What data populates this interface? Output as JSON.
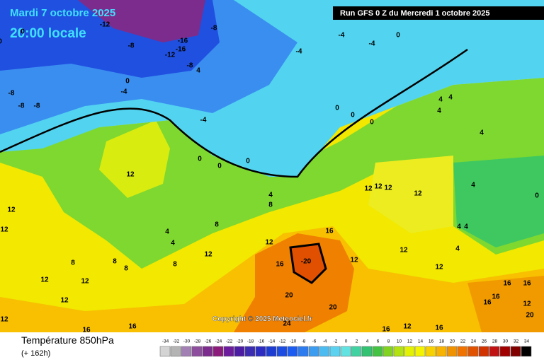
{
  "header": {
    "date_line": "Mardi 7 octobre 2025",
    "local_time": "20:00 locale",
    "run_info": "Run GFS 0 Z du Mercredi 1 octobre 2025"
  },
  "copyright": "Copyright © 2025 Meteociel.fr",
  "footer": {
    "title": "Température 850hPa",
    "lead": "(+ 162h)"
  },
  "map_labels": [
    -8,
    -8,
    -8,
    -8,
    -16,
    -16,
    -12,
    -8,
    4,
    -8,
    -12,
    0,
    -4,
    -4,
    0,
    0,
    0,
    -4,
    -4,
    0,
    -4,
    0,
    0,
    0,
    4,
    4,
    4,
    4,
    12,
    12,
    12,
    4,
    4,
    4,
    8,
    8,
    12,
    12,
    16,
    12,
    12,
    12,
    12,
    16,
    -20,
    12,
    12,
    12,
    4,
    4,
    4,
    4,
    8,
    8,
    8,
    8,
    12,
    12,
    12,
    20,
    20,
    24,
    16,
    12,
    16,
    16,
    16,
    12,
    16,
    16,
    20,
    0,
    12,
    16,
    16,
    0,
    0
  ],
  "legend": {
    "ticks": [
      -34,
      -32,
      -30,
      -28,
      -26,
      -24,
      -22,
      -20,
      -18,
      -16,
      -14,
      -12,
      -10,
      -8,
      -6,
      -4,
      -2,
      0,
      2,
      4,
      6,
      8,
      10,
      12,
      14,
      16,
      18,
      20,
      22,
      24,
      26,
      28,
      30,
      32,
      34
    ],
    "colors": [
      "#d4d4d4",
      "#b4b4b4",
      "#a280b4",
      "#8e4e9e",
      "#7c2c8c",
      "#8c1c7c",
      "#6c1c9c",
      "#4c1ca2",
      "#3c2cb2",
      "#2c2cc2",
      "#1c3cd2",
      "#1c4ce2",
      "#1c5cf0",
      "#2c7cf0",
      "#3c9cf0",
      "#4cbcf0",
      "#5cd2f0",
      "#62e2e0",
      "#42d2a2",
      "#32c272",
      "#44c244",
      "#82d222",
      "#b2e212",
      "#e2f202",
      "#f4f400",
      "#f8d200",
      "#f8b200",
      "#f09200",
      "#f07200",
      "#e05200",
      "#d03200",
      "#c01212",
      "#a00000",
      "#800000",
      "#000000"
    ]
  }
}
